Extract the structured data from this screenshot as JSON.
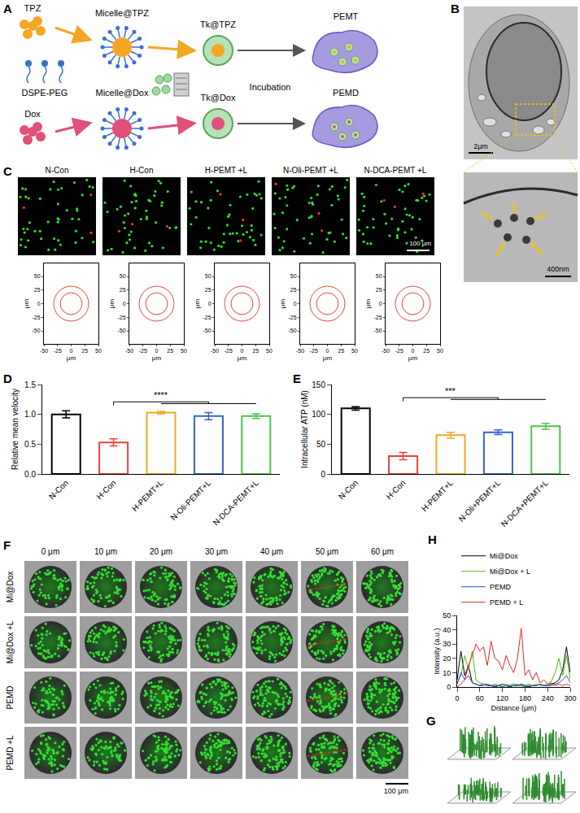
{
  "figure": {
    "A": {
      "letter": "A",
      "drugs": [
        "TPZ",
        "Dox"
      ],
      "carrier": "DSPE-PEG",
      "micelles": [
        "Micelle@TPZ",
        "Micelle@Dox"
      ],
      "loaded": [
        "Tk@TPZ",
        "Tk@Dox"
      ],
      "step": "Incubation",
      "products": [
        "PEMT",
        "PEMD"
      ]
    },
    "B": {
      "letter": "B",
      "scale_bar": "2μm",
      "inset_scale_bar": "400nm"
    },
    "C": {
      "letter": "C",
      "groups": [
        "N-Con",
        "H-Con",
        "H-PEMT +L",
        "N-Oli-PEMT +L",
        "N-DCA-PEMT +L"
      ],
      "scale_bar": "100 μm"
    },
    "F": {
      "letter": "F",
      "depths": [
        "0 μm",
        "10 μm",
        "20 μm",
        "30 μm",
        "40 μm",
        "50 μm",
        "60 μm"
      ],
      "rows": [
        "Mi@Dox",
        "Mi@Dox +L",
        "PEMD",
        "PEMD +L"
      ],
      "scale_bar": "100 μm"
    },
    "G": {
      "letter": "G"
    }
  },
  "chart_data": [
    {
      "type": "scatter",
      "xlabel": "μm",
      "ylabel": "μm",
      "xlim": [
        -50,
        50
      ],
      "ylim": [
        -50,
        50
      ],
      "xticks": [
        -50,
        -25,
        0,
        25,
        50
      ],
      "yticks": [
        -50,
        -25,
        0,
        25,
        50
      ],
      "circle_radii": [
        20,
        32
      ],
      "color": "#e8413c"
    },
    {
      "letter": "D",
      "type": "bar",
      "ylabel": "Relative mean velocity",
      "categories": [
        "N-Con",
        "H-Con",
        "H-PEMT+L",
        "N-Oli-PEMT+L",
        "N-DCA-PEMT+L"
      ],
      "values": [
        1.0,
        0.53,
        1.03,
        0.97,
        0.97
      ],
      "errors": [
        0.06,
        0.06,
        0.02,
        0.06,
        0.04
      ],
      "colors": [
        "#000000",
        "#e8413c",
        "#f5a623",
        "#3a5fcd",
        "#4cc44c"
      ],
      "ylim": [
        0,
        1.5
      ],
      "yticks": [
        {
          "value": 0,
          "label": "0.0"
        },
        0.5,
        {
          "value": 1,
          "label": "1.0"
        },
        1.5
      ],
      "annotations": [
        {
          "text": "****",
          "from": "H-Con",
          "to": [
            "H-PEMT+L",
            "N-Oli-PEMT+L",
            "N-DCA-PEMT+L"
          ]
        }
      ]
    },
    {
      "letter": "E",
      "type": "bar",
      "ylabel": "Intracellular ATP (nM)",
      "categories": [
        "N-Con",
        "H-Con",
        "H-PEMT+L",
        "N-Oli+PEMT+L",
        "N-DCA+PEMT+L"
      ],
      "values": [
        110,
        30,
        65,
        70,
        80
      ],
      "errors": [
        3,
        6,
        5,
        4,
        5
      ],
      "colors": [
        "#000000",
        "#e8413c",
        "#f5a623",
        "#3a5fcd",
        "#4cc44c"
      ],
      "ylim": [
        0,
        150
      ],
      "yticks": [
        0,
        50,
        100,
        150
      ],
      "annotations": [
        {
          "text": "***",
          "from": "H-Con",
          "to": [
            "H-PEMT+L",
            "N-Oli+PEMT+L",
            "N-DCA+PEMT+L"
          ]
        }
      ]
    },
    {
      "letter": "H",
      "type": "line",
      "xlabel": "Distance (μm)",
      "ylabel": "Intensity (a.u.)",
      "xlim": [
        0,
        300
      ],
      "xticks": [
        0,
        60,
        120,
        180,
        240,
        300
      ],
      "ylim": [
        0,
        50
      ],
      "yticks": [
        0,
        10,
        20,
        30,
        40,
        50
      ],
      "legend": "top",
      "x": [
        0,
        10,
        20,
        30,
        40,
        50,
        60,
        70,
        80,
        90,
        100,
        110,
        120,
        130,
        140,
        150,
        160,
        170,
        180,
        190,
        200,
        210,
        220,
        230,
        240,
        250,
        260,
        270,
        280,
        290,
        300
      ],
      "series": [
        {
          "name": "Mi@Dox",
          "color": "#000000",
          "values": [
            5,
            25,
            8,
            15,
            3,
            2,
            1,
            2,
            1,
            1,
            0,
            1,
            2,
            1,
            0,
            1,
            1,
            2,
            1,
            0,
            1,
            1,
            2,
            1,
            1,
            2,
            3,
            5,
            12,
            28,
            10
          ]
        },
        {
          "name": "Mi@Dox + L",
          "color": "#4cbb17",
          "values": [
            3,
            8,
            22,
            12,
            25,
            5,
            3,
            2,
            2,
            1,
            2,
            1,
            1,
            2,
            1,
            1,
            2,
            1,
            1,
            2,
            1,
            2,
            1,
            1,
            2,
            4,
            10,
            20,
            8,
            22,
            5
          ]
        },
        {
          "name": "PEMD",
          "color": "#2f4fd8",
          "values": [
            2,
            10,
            5,
            8,
            3,
            2,
            1,
            1,
            2,
            1,
            1,
            1,
            0,
            1,
            1,
            2,
            1,
            1,
            0,
            1,
            1,
            1,
            2,
            1,
            1,
            1,
            2,
            3,
            5,
            8,
            3
          ]
        },
        {
          "name": "PEMD + L",
          "color": "#e8251f",
          "values": [
            0,
            2,
            5,
            15,
            22,
            30,
            25,
            28,
            15,
            32,
            20,
            18,
            12,
            22,
            15,
            10,
            20,
            41,
            8,
            12,
            5,
            10,
            3,
            5,
            2,
            3,
            1,
            2,
            1,
            2,
            1
          ]
        }
      ]
    }
  ]
}
